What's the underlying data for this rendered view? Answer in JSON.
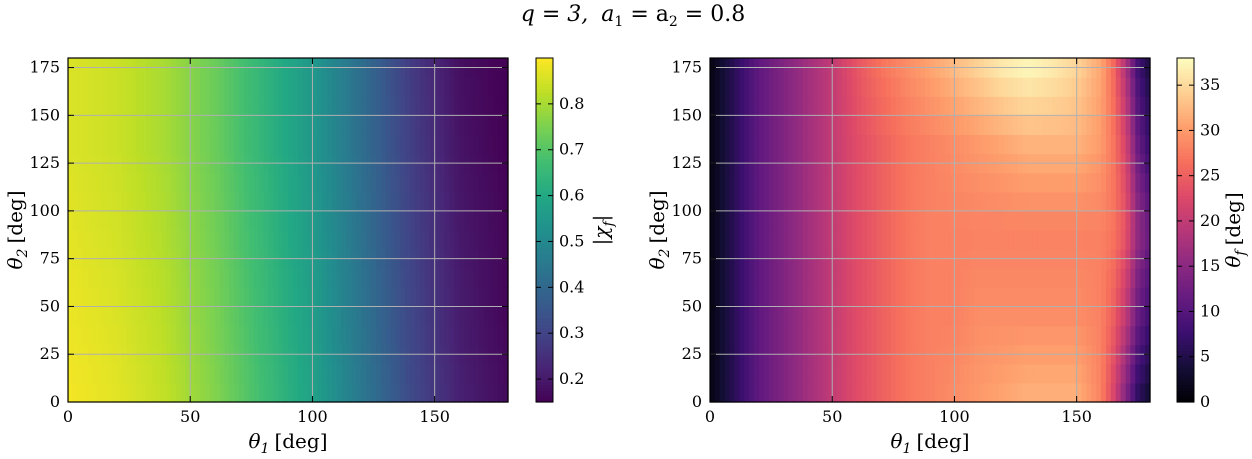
{
  "figure": {
    "title_parts": {
      "q": "q = 3,",
      "a": "a",
      "s1": "1",
      "eq1": " = a",
      "s2": "2",
      "eq2": " = 0.8"
    }
  },
  "chart_data": [
    {
      "type": "heatmap",
      "colormap": "viridis",
      "xlabel": "θ1 [deg]",
      "ylabel": "θ2 [deg]",
      "xlim": [
        0,
        180
      ],
      "ylim": [
        0,
        180
      ],
      "x_ticks": [
        0,
        50,
        100,
        150
      ],
      "y_ticks": [
        0,
        25,
        50,
        75,
        100,
        125,
        150,
        175
      ],
      "grid": true,
      "colorbar": {
        "label": "|χf|",
        "range": [
          0.15,
          0.9
        ],
        "ticks": [
          0.2,
          0.3,
          0.4,
          0.5,
          0.6,
          0.7,
          0.8
        ]
      },
      "x": [
        0,
        20,
        40,
        60,
        80,
        100,
        120,
        140,
        160,
        180
      ],
      "y": [
        0,
        45,
        90,
        135,
        180
      ],
      "z": [
        [
          0.89,
          0.87,
          0.83,
          0.76,
          0.67,
          0.58,
          0.45,
          0.32,
          0.22,
          0.17
        ],
        [
          0.88,
          0.86,
          0.82,
          0.75,
          0.66,
          0.57,
          0.44,
          0.31,
          0.21,
          0.16
        ],
        [
          0.87,
          0.85,
          0.81,
          0.74,
          0.65,
          0.56,
          0.43,
          0.3,
          0.2,
          0.16
        ],
        [
          0.86,
          0.84,
          0.8,
          0.73,
          0.64,
          0.55,
          0.42,
          0.29,
          0.19,
          0.15
        ],
        [
          0.86,
          0.84,
          0.8,
          0.73,
          0.64,
          0.55,
          0.42,
          0.28,
          0.18,
          0.15
        ]
      ]
    },
    {
      "type": "heatmap",
      "colormap": "magma",
      "xlabel": "θ1 [deg]",
      "ylabel": "θ2 [deg]",
      "xlim": [
        0,
        180
      ],
      "ylim": [
        0,
        180
      ],
      "x_ticks": [
        0,
        50,
        100,
        150
      ],
      "y_ticks": [
        0,
        25,
        50,
        75,
        100,
        125,
        150,
        175
      ],
      "grid": true,
      "colorbar": {
        "label": "θf [deg]",
        "range": [
          0,
          38
        ],
        "ticks": [
          0,
          5,
          10,
          15,
          20,
          25,
          30,
          35
        ]
      },
      "x": [
        0,
        10,
        20,
        30,
        40,
        50,
        60,
        70,
        80,
        90,
        100,
        110,
        120,
        130,
        140,
        150,
        160,
        165,
        170,
        175,
        180
      ],
      "y": [
        0,
        45,
        90,
        135,
        180
      ],
      "z": [
        [
          1,
          6,
          11,
          14,
          17,
          20,
          23,
          25,
          27,
          28,
          29,
          30,
          31,
          32,
          32,
          32,
          28,
          22,
          14,
          6,
          3
        ],
        [
          1,
          6,
          11,
          14,
          17,
          20,
          23,
          25,
          27,
          28,
          28,
          29,
          29,
          29,
          29,
          29,
          28,
          25,
          20,
          12,
          8
        ],
        [
          1,
          6,
          11,
          14,
          17,
          20,
          23,
          25,
          27,
          28,
          28,
          28,
          28,
          28,
          28,
          28,
          28,
          27,
          24,
          16,
          12
        ],
        [
          1,
          6,
          11,
          14,
          17,
          20,
          23,
          25,
          27,
          28,
          29,
          30,
          31,
          32,
          32,
          32,
          30,
          27,
          22,
          12,
          7
        ],
        [
          1,
          6,
          11,
          14,
          17,
          20,
          24,
          27,
          29,
          31,
          33,
          35,
          37,
          38,
          37,
          35,
          31,
          26,
          18,
          8,
          4
        ]
      ]
    }
  ]
}
